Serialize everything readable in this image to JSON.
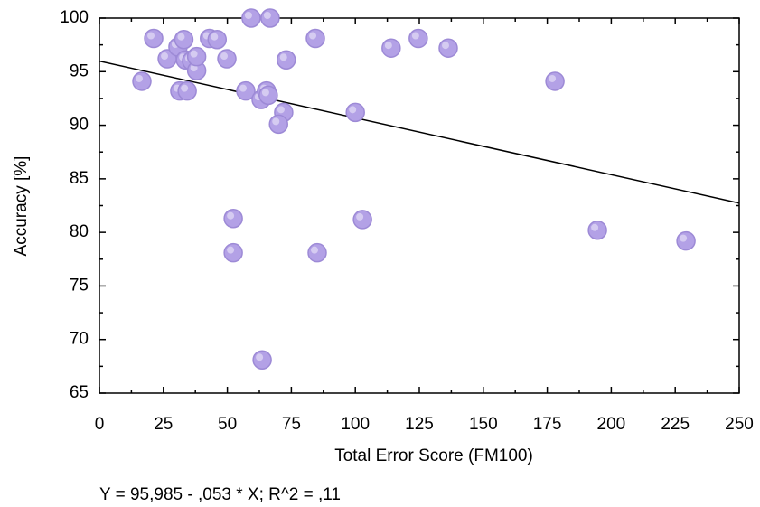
{
  "chart_data": {
    "type": "scatter",
    "x_label": "Total Error Score (FM100)",
    "y_label": "Accuracy [%]",
    "annotation": "Y = 95,985 - ,053 * X; R^2 = ,11",
    "regression": {
      "intercept": 95.985,
      "slope": -0.053
    },
    "xlim": [
      0,
      250
    ],
    "xticks": [
      0,
      25,
      50,
      75,
      100,
      125,
      150,
      175,
      200,
      225,
      250
    ],
    "ylim": [
      65,
      100
    ],
    "yticks": [
      65,
      70,
      75,
      80,
      85,
      90,
      95,
      100
    ],
    "color": "#b3a1e6",
    "grid": false,
    "x": [
      16.6,
      21.2,
      26.5,
      30.7,
      33,
      31.4,
      34.3,
      33.6,
      36,
      38,
      38,
      43,
      46,
      49.8,
      59.3,
      66.7,
      57.2,
      63.2,
      65.3,
      66,
      72,
      70,
      73,
      84.4,
      52.3,
      52.3,
      63.6,
      85.1,
      100,
      102.8,
      114,
      124.6,
      136.3,
      178,
      194.6,
      229.2
    ],
    "values": [
      94.1,
      98.1,
      96.2,
      97.3,
      98,
      93.2,
      93.2,
      96.1,
      96,
      95.1,
      96.4,
      98.1,
      98,
      96.2,
      100,
      100,
      93.2,
      92.4,
      93.2,
      92.8,
      91.2,
      90.1,
      96.1,
      98.1,
      81.3,
      78.1,
      68.1,
      78.1,
      91.2,
      81.2,
      97.2,
      98.1,
      97.2,
      94.1,
      80.2,
      79.2
    ]
  }
}
